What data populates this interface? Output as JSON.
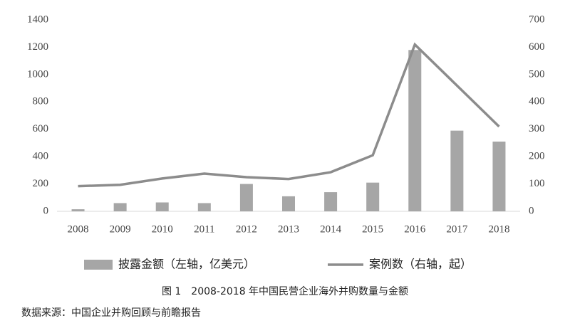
{
  "chart_data": {
    "type": "bar",
    "title": "图 1　2008-2018 年中国民营企业海外并购数量与金额",
    "source": "数据来源：中国企业并购回顾与前瞻报告",
    "categories": [
      "2008",
      "2009",
      "2010",
      "2011",
      "2012",
      "2013",
      "2014",
      "2015",
      "2016",
      "2017",
      "2018"
    ],
    "series": [
      {
        "name": "披露金额（左轴，亿美元）",
        "type": "bar",
        "color": "#a6a6a6",
        "values": [
          15,
          60,
          65,
          60,
          200,
          110,
          140,
          210,
          1180,
          590,
          510
        ]
      },
      {
        "name": "案例数（右轴，起）",
        "type": "line",
        "axis": "y2",
        "color": "#8c8c8c",
        "values": [
          92,
          97,
          120,
          138,
          125,
          118,
          143,
          205,
          610,
          460,
          310
        ]
      }
    ],
    "ylim": [
      0,
      1400
    ],
    "yticks": [
      0,
      200,
      400,
      600,
      800,
      1000,
      1200,
      1400
    ],
    "y2lim": [
      0,
      700
    ],
    "y2ticks": [
      0,
      100,
      200,
      300,
      400,
      500,
      600,
      700
    ],
    "grid": false
  }
}
